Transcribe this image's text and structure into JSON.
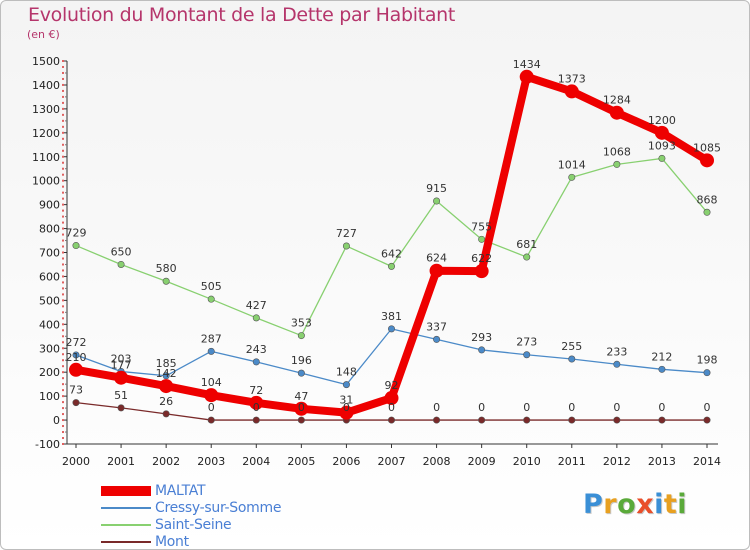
{
  "title": "Evolution du Montant de la Dette par Habitant",
  "unit_label": "(en €)",
  "logo": {
    "letters": [
      "P",
      "r",
      "o",
      "x",
      "i",
      "t",
      "i"
    ],
    "colors": [
      "#3a8fd6",
      "#e8a020",
      "#5aaa3a",
      "#e94e2a",
      "#3a8fd6",
      "#e8a020",
      "#5aaa3a"
    ]
  },
  "chart_data": {
    "type": "line",
    "x": [
      "2000",
      "2001",
      "2002",
      "2003",
      "2004",
      "2005",
      "2006",
      "2007",
      "2008",
      "2009",
      "2010",
      "2011",
      "2012",
      "2013",
      "2014"
    ],
    "ylim": [
      -100,
      1500
    ],
    "yticks": [
      -100,
      0,
      100,
      200,
      300,
      400,
      500,
      600,
      700,
      800,
      900,
      1000,
      1100,
      1200,
      1300,
      1400,
      1500
    ],
    "grid": false,
    "legend_position": "bottom-left",
    "series": [
      {
        "name": "MALTAT",
        "color": "#ee0000",
        "values": [
          210,
          177,
          142,
          104,
          72,
          47,
          31,
          92,
          624,
          622,
          1434,
          1373,
          1284,
          1200,
          1085
        ]
      },
      {
        "name": "Cressy-sur-Somme",
        "color": "#4b8ac8",
        "values": [
          272,
          203,
          185,
          287,
          243,
          196,
          148,
          381,
          337,
          293,
          273,
          255,
          233,
          212,
          198
        ]
      },
      {
        "name": "Saint-Seine",
        "color": "#88d070",
        "values": [
          729,
          650,
          580,
          505,
          427,
          353,
          727,
          642,
          915,
          755,
          681,
          1014,
          1068,
          1093,
          868
        ]
      },
      {
        "name": "Mont",
        "color": "#7a2a2a",
        "values": [
          73,
          51,
          26,
          0,
          0,
          0,
          0,
          0,
          0,
          0,
          0,
          0,
          0,
          0,
          0
        ]
      }
    ]
  }
}
